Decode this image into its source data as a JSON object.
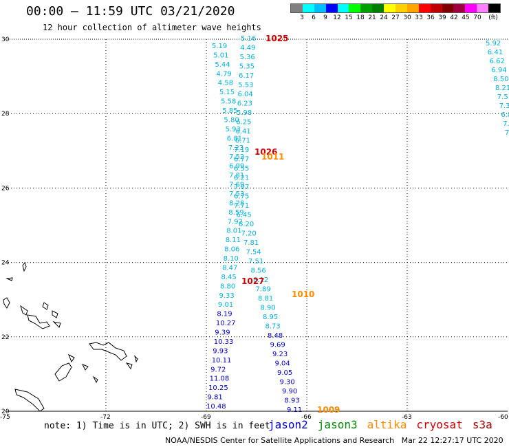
{
  "title": "00:00 – 11:59 UTC 03/21/2020",
  "subtitle": "12 hour collection of altimeter wave heights",
  "scale": {
    "colors": [
      "#808080",
      "#00ffff",
      "#00bfff",
      "#0000ff",
      "#00ffff",
      "#00ff00",
      "#00a000",
      "#008000",
      "#ffff00",
      "#ffd000",
      "#ffa500",
      "#ff0000",
      "#c00000",
      "#800000",
      "#a00040",
      "#ff00ff",
      "#ff80ff",
      "#000000"
    ],
    "labels": [
      "3",
      "6",
      "9",
      "12",
      "15",
      "18",
      "21",
      "24",
      "27",
      "30",
      "33",
      "36",
      "39",
      "42",
      "45",
      "70",
      "(ft)"
    ]
  },
  "axes": {
    "lat_ticks": [
      "30",
      "28",
      "26",
      "24",
      "22",
      "20"
    ],
    "lon_ticks": [
      "-75",
      "-72",
      "-69",
      "-66",
      "-63",
      "-60"
    ]
  },
  "swh_columns": {
    "col_a": [
      "5.19",
      "5.01",
      "5.44",
      "4.79",
      "4.58",
      "5.15",
      "5.58",
      "5.85",
      "5.80",
      "5.93",
      "6.81",
      "7.23",
      "7.52",
      "6.99",
      "7.81",
      "7.69",
      "7.53",
      "8.28",
      "8.59",
      "7.92",
      "8.01",
      "8.11",
      "8.06",
      "8.10",
      "8.47",
      "8.45",
      "8.80",
      "9.33",
      "9.01",
      "8.19",
      "10.27",
      "9.39",
      "10.33",
      "9.93",
      "10.11",
      "9.72",
      "11.08",
      "10.25",
      "9.81",
      "10.48"
    ],
    "col_b": [
      "5.16",
      "4.49",
      "5.36",
      "5.35",
      "6.17",
      "5.53",
      "6.04",
      "6.23",
      "5.98",
      "6.25",
      "6.41",
      "6.71",
      "7.19",
      "6.77",
      "6.55",
      "6.21",
      "7.07",
      "6.75",
      "7.71",
      "6.45",
      "8.20",
      "7.20",
      "7.81",
      "7.54",
      "7.51",
      "8.56",
      "8.12",
      "7.89",
      "8.81",
      "8.90",
      "8.95",
      "8.73",
      "8.48",
      "9.69",
      "9.23",
      "9.04",
      "9.05",
      "9.30",
      "9.90",
      "8.93",
      "9.11"
    ],
    "col_c": [
      "5.92",
      "6.41",
      "6.62",
      "6.94",
      "8.50",
      "8.21",
      "7.5",
      "7.3",
      "6.8",
      "7.",
      "7"
    ]
  },
  "pressure_labels": [
    {
      "text": "1025",
      "color": "#cc0000"
    },
    {
      "text": "1026",
      "color": "#cc0000"
    },
    {
      "text": "1011",
      "color": "#ff8c00"
    },
    {
      "text": "1027",
      "color": "#cc0000"
    },
    {
      "text": "1010",
      "color": "#ff8c00"
    },
    {
      "text": "1009",
      "color": "#ff8c00"
    }
  ],
  "note": "note: 1) Time is in UTC; 2) SWH is in feet",
  "satellites": [
    {
      "name": "jason2",
      "color": "#0000cc"
    },
    {
      "name": "jason3",
      "color": "#008800"
    },
    {
      "name": "altika",
      "color": "#ff8c00"
    },
    {
      "name": "cryosat",
      "color": "#cc0000"
    },
    {
      "name": "s3a",
      "color": "#aa0000"
    }
  ],
  "credit": "NOAA/NESDIS Center for Satellite Applications and Research   Mar 22 12:27:17 UTC 2020"
}
